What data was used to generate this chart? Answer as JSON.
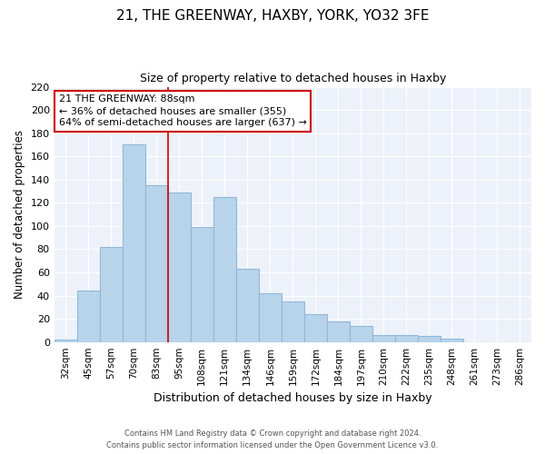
{
  "title1": "21, THE GREENWAY, HAXBY, YORK, YO32 3FE",
  "title2": "Size of property relative to detached houses in Haxby",
  "xlabel": "Distribution of detached houses by size in Haxby",
  "ylabel": "Number of detached properties",
  "categories": [
    "32sqm",
    "45sqm",
    "57sqm",
    "70sqm",
    "83sqm",
    "95sqm",
    "108sqm",
    "121sqm",
    "134sqm",
    "146sqm",
    "159sqm",
    "172sqm",
    "184sqm",
    "197sqm",
    "210sqm",
    "222sqm",
    "235sqm",
    "248sqm",
    "261sqm",
    "273sqm",
    "286sqm"
  ],
  "values": [
    2,
    44,
    82,
    170,
    135,
    129,
    99,
    125,
    63,
    42,
    35,
    24,
    18,
    14,
    6,
    6,
    5,
    3,
    0,
    0,
    0
  ],
  "bar_color": "#b8d4ea",
  "bar_edge_color": "#90b8d8",
  "vline_color": "#cc0000",
  "annotation_title": "21 THE GREENWAY: 88sqm",
  "annotation_line1": "← 36% of detached houses are smaller (355)",
  "annotation_line2": "64% of semi-detached houses are larger (637) →",
  "annotation_box_color": "#ffffff",
  "annotation_box_edge": "#cc0000",
  "ylim": [
    0,
    220
  ],
  "yticks": [
    0,
    20,
    40,
    60,
    80,
    100,
    120,
    140,
    160,
    180,
    200,
    220
  ],
  "footer1": "Contains HM Land Registry data © Crown copyright and database right 2024.",
  "footer2": "Contains public sector information licensed under the Open Government Licence v3.0.",
  "bg_color": "#ffffff",
  "plot_bg_color": "#edf2fa"
}
